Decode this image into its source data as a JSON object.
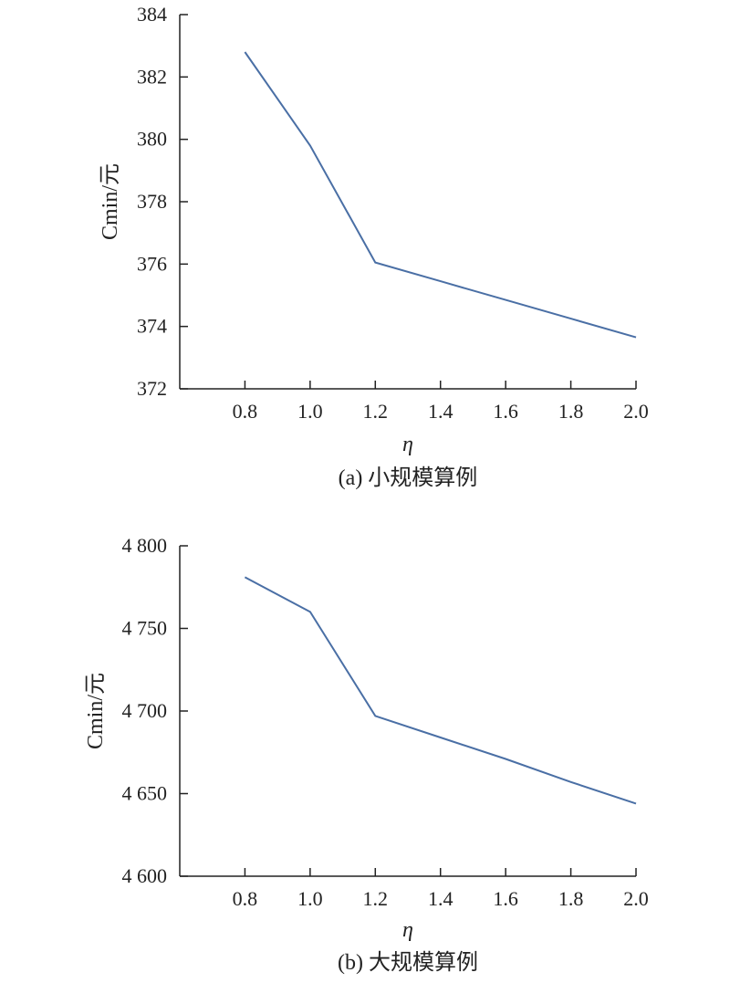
{
  "chart_data": [
    {
      "type": "line",
      "caption": "(a) 小规模算例",
      "xlabel": "η",
      "ylabel": "Cmin/元",
      "x": [
        0.8,
        1.0,
        1.2,
        1.4,
        1.6,
        1.8,
        2.0
      ],
      "x_tick_labels": [
        "0.8",
        "1.0",
        "1.2",
        "1.4",
        "1.6",
        "1.8",
        "2.0"
      ],
      "xlim": [
        0.6,
        2.0
      ],
      "ylim": [
        372,
        384
      ],
      "y_ticks": [
        372,
        374,
        376,
        378,
        380,
        382,
        384
      ],
      "y_tick_labels": [
        "372",
        "374",
        "376",
        "378",
        "380",
        "382",
        "384"
      ],
      "series": [
        {
          "values": [
            382.8,
            379.8,
            376.05,
            375.45,
            374.85,
            374.25,
            373.65
          ],
          "color": "#4a6fa5"
        }
      ],
      "grid": false
    },
    {
      "type": "line",
      "caption": "(b) 大规模算例",
      "xlabel": "η",
      "ylabel": "Cmin/元",
      "x": [
        0.8,
        1.0,
        1.2,
        1.4,
        1.6,
        1.8,
        2.0
      ],
      "x_tick_labels": [
        "0.8",
        "1.0",
        "1.2",
        "1.4",
        "1.6",
        "1.8",
        "2.0"
      ],
      "xlim": [
        0.6,
        2.0
      ],
      "ylim": [
        4600,
        4800
      ],
      "y_ticks": [
        4600,
        4650,
        4700,
        4750,
        4800
      ],
      "y_tick_labels": [
        "4 600",
        "4 650",
        "4 700",
        "4 750",
        "4 800"
      ],
      "series": [
        {
          "values": [
            4781,
            4760,
            4697,
            4684,
            4671,
            4657,
            4644
          ],
          "color": "#4a6fa5"
        }
      ],
      "grid": false
    }
  ]
}
